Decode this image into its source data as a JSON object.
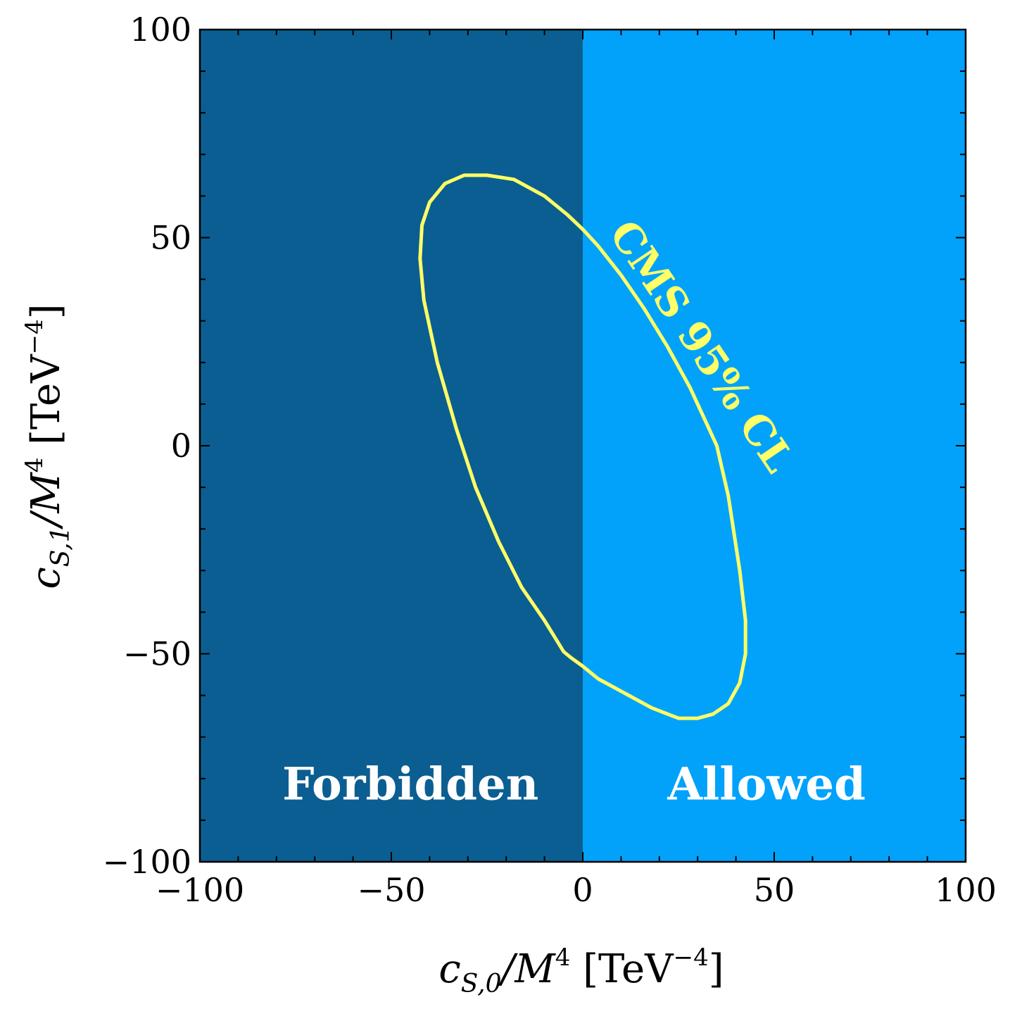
{
  "chart_data": {
    "type": "line",
    "title": "",
    "xlabel": {
      "base": "c",
      "sub": "S,0",
      "mid": "/M",
      "sup": "4",
      "unit": " [TeV",
      "unit_sup": "−4",
      "unit_close": "]"
    },
    "ylabel": {
      "base": "c",
      "sub": "S,1",
      "mid": "/M",
      "sup": "4",
      "unit": " [TeV",
      "unit_sup": "−4",
      "unit_close": "]"
    },
    "xlim": [
      -100,
      100
    ],
    "ylim": [
      -100,
      100
    ],
    "xticks": [
      -100,
      -50,
      0,
      50,
      100
    ],
    "yticks": [
      -100,
      -50,
      0,
      50,
      100
    ],
    "xtick_labels": [
      "−100",
      "−50",
      "0",
      "50",
      "100"
    ],
    "ytick_labels": [
      "−100",
      "−50",
      "0",
      "50",
      "100"
    ],
    "regions": [
      {
        "name": "Forbidden",
        "x_range": [
          -100,
          0
        ],
        "color": "#0b5e91"
      },
      {
        "name": "Allowed",
        "x_range": [
          0,
          100
        ],
        "color": "#02a2fb"
      }
    ],
    "series": [
      {
        "name": "CMS 95% CL",
        "color": "#ffff66",
        "x": [
          -25,
          -18,
          -10,
          -4,
          0,
          4,
          10,
          16,
          22,
          28,
          32,
          35,
          38,
          41,
          42.5,
          42.5,
          41,
          38,
          34,
          30,
          25,
          18,
          10,
          4,
          0,
          -3,
          -5,
          -10,
          -16,
          -22,
          -28,
          -33,
          -38,
          -41.5,
          -42.5,
          -42,
          -40,
          -36,
          -31,
          -25
        ],
        "y": [
          65,
          64,
          60,
          55.5,
          52,
          48,
          41,
          33,
          24,
          14,
          6,
          0,
          -12,
          -30,
          -42,
          -50,
          -57,
          -62,
          -64.5,
          -65.5,
          -65.5,
          -63,
          -59,
          -56,
          -53,
          -51,
          -49.5,
          -42,
          -34,
          -23,
          -10,
          4,
          20,
          35,
          45,
          53,
          58.5,
          63,
          65,
          65
        ]
      }
    ],
    "annotations": [
      {
        "text": "Forbidden",
        "x": -45,
        "y": -85
      },
      {
        "text": "Allowed",
        "x": 48,
        "y": -85
      },
      {
        "text": "CMS 95% CL",
        "x": 28,
        "y": 22,
        "rotation": 56
      }
    ],
    "grid": false,
    "legend": "none"
  }
}
